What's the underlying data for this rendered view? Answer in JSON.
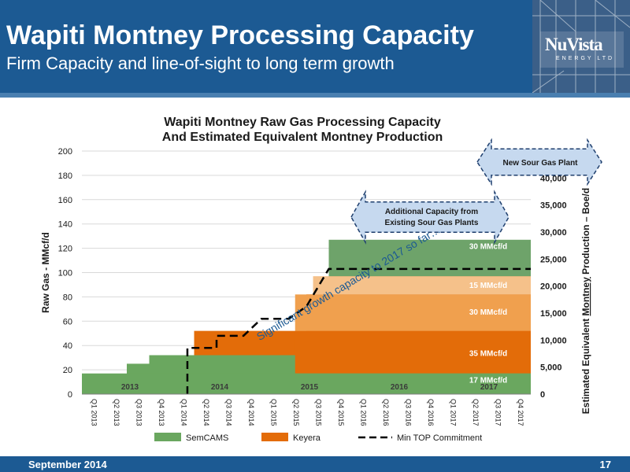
{
  "slide": {
    "title": "Wapiti Montney Processing Capacity",
    "subtitle": "Firm Capacity and line-of-sight to long term growth",
    "footer_date": "September 2014",
    "page_number": "17",
    "logo_text": "NuVista",
    "logo_sub": "ENERGY LTD"
  },
  "colors": {
    "header": "#1c5a93",
    "semcams": "#6aa75f",
    "semcams_light": "#8fbf86",
    "keyera_dark": "#e36c09",
    "keyera_mid": "#f0a04e",
    "keyera_light": "#f5c18a",
    "future_green": "#6ea36a",
    "callout": "#c6d9ef"
  },
  "chart_data": {
    "type": "area",
    "title_line1": "Wapiti Montney Raw Gas Processing Capacity",
    "title_line2": "And Estimated Equivalent Montney Production",
    "ylabel": "Raw Gas - MMcf/d",
    "y2label_parts": [
      "Estimated Equivalent ",
      "Montney",
      " Production – Boe/d"
    ],
    "ylim": [
      0,
      200
    ],
    "y2lim": [
      0,
      45000
    ],
    "yticks": [
      "0",
      "20",
      "40",
      "60",
      "80",
      "100",
      "120",
      "140",
      "160",
      "180",
      "200"
    ],
    "y2ticks": [
      "0",
      "5,000",
      "10,000",
      "15,000",
      "20,000",
      "25,000",
      "30,000",
      "35,000",
      "40,000"
    ],
    "categories": [
      "Q1 2013",
      "Q2 2013",
      "Q3 2013",
      "Q4 2013",
      "Q1 2014",
      "Q2 2014",
      "Q3 2014",
      "Q4 2014",
      "Q1 2015",
      "Q2 2015",
      "Q3 2015",
      "Q4 2015",
      "Q1 2016",
      "Q2 2016",
      "Q3 2016",
      "Q4 2016",
      "Q1 2017",
      "Q2 2017",
      "Q3 2017",
      "Q4 2017"
    ],
    "year_labels": [
      {
        "label": "2013",
        "quarter": 2
      },
      {
        "label": "2014",
        "quarter": 6
      },
      {
        "label": "2015",
        "quarter": 10
      },
      {
        "label": "2016",
        "quarter": 14
      },
      {
        "label": "2017",
        "quarter": 18
      }
    ],
    "series": [
      {
        "name": "SemCAMS",
        "values": [
          10,
          10,
          25,
          32,
          32,
          32,
          32,
          32,
          32,
          32,
          32,
          32,
          32,
          32,
          32,
          32,
          32,
          32,
          32,
          32
        ]
      },
      {
        "name": "Keyera",
        "values": [
          0,
          0,
          0,
          0,
          0,
          20,
          20,
          20,
          20,
          20,
          50,
          65,
          65,
          65,
          65,
          65,
          65,
          65,
          65,
          65
        ]
      },
      {
        "name": "Min TOP Commitment",
        "values": [
          0,
          0,
          0,
          0,
          0,
          40,
          40,
          50,
          60,
          60,
          70,
          105,
          105,
          105,
          105,
          105,
          105,
          105,
          105,
          105
        ]
      }
    ],
    "band_labels": [
      "30 MMcf/d",
      "15 MMcf/d",
      "30 MMcf/d",
      "35 MMcf/d",
      "17 MMcf/d"
    ],
    "callouts": {
      "new_sour": "New Sour Gas Plant",
      "additional_1": "Additional Capacity from",
      "additional_2": "Existing Sour Gas Plants",
      "diagonal": "Significant growth capacity to 2017 so far…"
    },
    "legend": [
      "SemCAMS",
      "Keyera",
      "Min TOP Commitment"
    ],
    "legend_position": "bottom"
  }
}
